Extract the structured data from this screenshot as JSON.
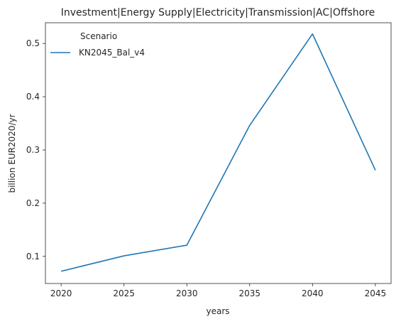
{
  "chart_data": {
    "type": "line",
    "title": "Investment|Energy Supply|Electricity|Transmission|AC|Offshore",
    "xlabel": "years",
    "ylabel": "billion EUR2020/yr",
    "x": [
      2020,
      2025,
      2030,
      2035,
      2040,
      2045
    ],
    "xticks": [
      "2020",
      "2025",
      "2030",
      "2035",
      "2040",
      "2045"
    ],
    "yticks": [
      "0.1",
      "0.2",
      "0.3",
      "0.4",
      "0.5"
    ],
    "ylim": [
      0.049,
      0.539
    ],
    "xlim": [
      2018.75,
      2046.25
    ],
    "grid": false,
    "legend": {
      "title": "Scenario",
      "placement": "top-left"
    },
    "series": [
      {
        "name": "KN2045_Bal_v4",
        "color": "#1f77b4",
        "values": [
          0.072,
          0.101,
          0.121,
          0.346,
          0.518,
          0.262
        ]
      }
    ]
  }
}
